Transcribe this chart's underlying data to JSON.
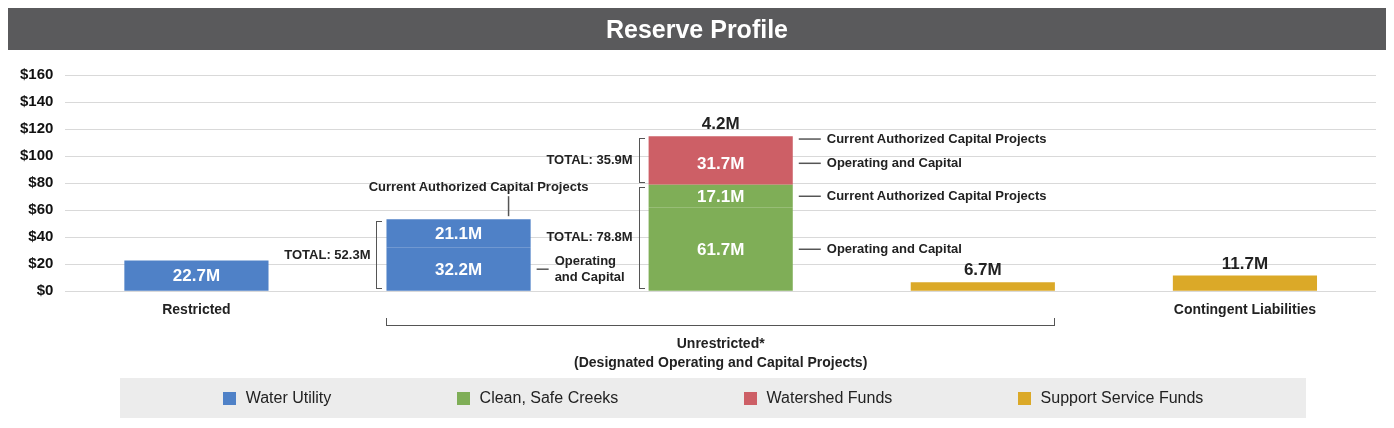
{
  "chart_data": {
    "type": "bar",
    "title": "Reserve Profile",
    "stacked": true,
    "categories": [
      "Restricted",
      null,
      null,
      null,
      "Contingent Liabilities"
    ],
    "series": [
      {
        "name": "Water Utility",
        "color": "#4f81c7",
        "values": [
          22.7,
          32.2,
          null,
          null,
          null
        ],
        "value_labels": [
          "22.7M",
          "32.2M",
          null,
          null,
          null
        ]
      },
      {
        "color": "#4f81c7",
        "values": [
          null,
          21.1,
          null,
          null,
          null
        ],
        "value_labels": [
          null,
          "21.1M",
          null,
          null,
          null
        ]
      },
      {
        "name": "Clean, Safe Creeks",
        "color": "#7fae57",
        "values": [
          null,
          null,
          61.7,
          null,
          null
        ],
        "value_labels": [
          null,
          null,
          "61.7M",
          null,
          null
        ]
      },
      {
        "color": "#7fae57",
        "values": [
          null,
          null,
          17.1,
          null,
          null
        ],
        "value_labels": [
          null,
          null,
          "17.1M",
          null,
          null
        ]
      },
      {
        "name": "Watershed Funds",
        "color": "#cd5f66",
        "values": [
          null,
          null,
          31.7,
          null,
          null
        ],
        "value_labels": [
          null,
          null,
          "31.7M",
          null,
          null
        ]
      },
      {
        "color": "#cd5f66",
        "values": [
          null,
          null,
          4.2,
          null,
          null
        ],
        "value_labels": [
          null,
          null,
          "4.2M",
          null,
          null
        ]
      },
      {
        "name": "Support Service Funds",
        "color": "#dba928",
        "values": [
          null,
          null,
          null,
          6.7,
          11.7
        ],
        "value_labels": [
          null,
          null,
          null,
          "6.7M",
          "11.7M"
        ]
      }
    ],
    "ylim": [
      0,
      160
    ],
    "yticks": [
      {
        "value": 0,
        "label": "$0"
      },
      {
        "value": 20,
        "label": "$20"
      },
      {
        "value": 40,
        "label": "$40"
      },
      {
        "value": 60,
        "label": "$60"
      },
      {
        "value": 80,
        "label": "$80"
      },
      {
        "value": 100,
        "label": "$100"
      },
      {
        "value": 120,
        "label": "$120"
      },
      {
        "value": 140,
        "label": "$140"
      },
      {
        "value": 160,
        "label": "$160"
      }
    ],
    "grid": "y",
    "legend": "bottom",
    "annotations": [
      "TOTAL: 35.9M",
      "Current Authorized Capital Projects",
      "Operating and Capital",
      "Current Authorized Capital Projects",
      "Operating and Capital",
      "TOTAL: 78.8M",
      {
        "text": "Current Authorized Capital Projects",
        "y": 53.3
      },
      "TOTAL: 52.3M",
      "Operating and Capital",
      "Unrestricted*",
      "(Designated Operating and Capital Projects)"
    ]
  }
}
